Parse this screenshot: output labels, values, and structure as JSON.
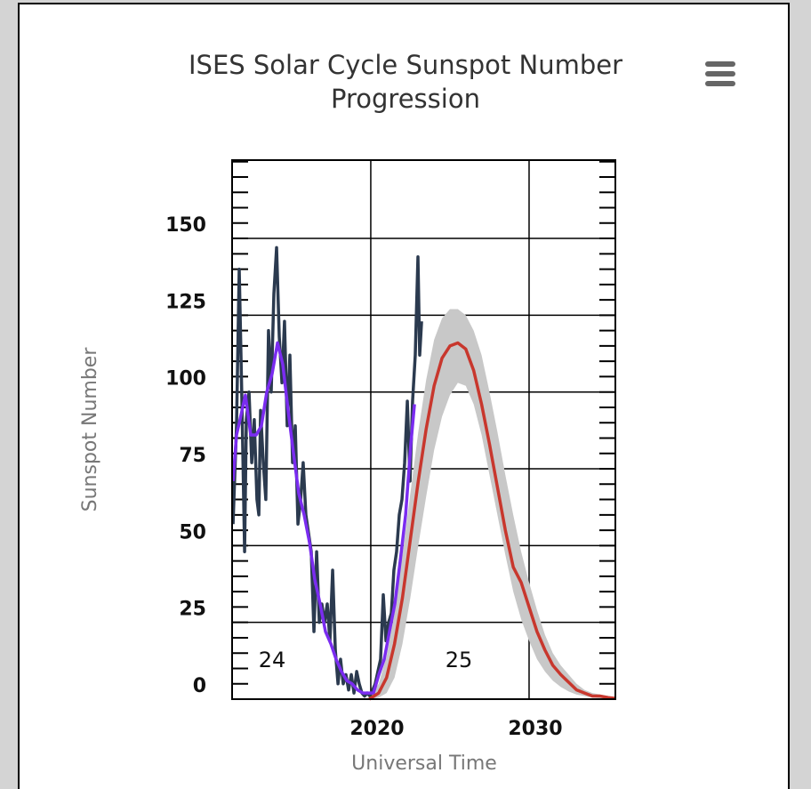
{
  "chart_data": {
    "type": "line",
    "title": "ISES Solar Cycle Sunspot Number Progression",
    "x_label": "Universal Time",
    "y_label": "Sunspot Number",
    "annotations": [
      "24",
      "25"
    ],
    "xlim": [
      2011.24,
      2035.45
    ],
    "ylim": [
      0,
      175.5
    ],
    "xticks": [
      2020,
      2030
    ],
    "yticks": [
      0,
      25,
      50,
      75,
      100,
      125,
      150
    ],
    "yminorticks": [
      0,
      5,
      10,
      15,
      20,
      25,
      30,
      35,
      40,
      45,
      50,
      55,
      60,
      65,
      70,
      75,
      80,
      85,
      90,
      95,
      100,
      105,
      110,
      115,
      120,
      125,
      130,
      135,
      140,
      145,
      150,
      155,
      160,
      165,
      170,
      175
    ],
    "grid": true,
    "band": {
      "type": "arearange",
      "color": "#c8c8c8",
      "x": [
        2019.9,
        2020.5,
        2021,
        2021.5,
        2022,
        2022.5,
        2023,
        2023.5,
        2024,
        2024.5,
        2025,
        2025.5,
        2026,
        2026.5,
        2027,
        2027.5,
        2028,
        2028.5,
        2029,
        2029.5,
        2030,
        2030.5,
        2031,
        2031.5,
        2032,
        2032.5,
        2033,
        2033.5,
        2034,
        2034.5,
        2035,
        2035.4
      ],
      "high": [
        1,
        5,
        14,
        28,
        47,
        67,
        87,
        104,
        117,
        124,
        127,
        127,
        125,
        120,
        112,
        100,
        87,
        73,
        60,
        48,
        38,
        29,
        21,
        15,
        11,
        8,
        5,
        3,
        2,
        1.5,
        1,
        0.6
      ],
      "low": [
        0,
        0.5,
        2,
        7,
        18,
        33,
        50,
        66,
        81,
        92,
        99,
        103,
        102,
        96,
        86,
        73,
        60,
        47,
        35,
        26,
        19,
        13,
        9,
        6,
        4,
        2.5,
        1.5,
        1,
        0.5,
        0.3,
        0.2,
        0.1
      ]
    },
    "series": [
      {
        "color": "#2b3a4f",
        "x": [
          2011.3,
          2011.52,
          2011.69,
          2011.86,
          2012.03,
          2012.14,
          2012.31,
          2012.48,
          2012.64,
          2012.81,
          2012.93,
          2013.04,
          2013.21,
          2013.37,
          2013.54,
          2013.71,
          2013.88,
          2014.05,
          2014.22,
          2014.39,
          2014.55,
          2014.72,
          2014.89,
          2015.06,
          2015.23,
          2015.4,
          2015.57,
          2015.73,
          2015.9,
          2016.07,
          2016.24,
          2016.41,
          2016.58,
          2016.75,
          2016.91,
          2017.08,
          2017.25,
          2017.42,
          2017.59,
          2017.76,
          2017.93,
          2018.09,
          2018.26,
          2018.43,
          2018.6,
          2018.77,
          2018.94,
          2019.11,
          2019.27,
          2019.44,
          2019.61,
          2019.78,
          2019.95,
          2020.12,
          2020.28,
          2020.45,
          2020.62,
          2020.79,
          2020.96,
          2021.13,
          2021.3,
          2021.46,
          2021.63,
          2021.8,
          2021.97,
          2022.14,
          2022.31,
          2022.48,
          2022.64,
          2022.81,
          2022.98,
          2023.09,
          2023.21
        ],
        "values": [
          57,
          89,
          140,
          97,
          48,
          91,
          100,
          77,
          91,
          65,
          60,
          94,
          77,
          65,
          120,
          100,
          132,
          147,
          118,
          103,
          123,
          89,
          112,
          77,
          89,
          57,
          65,
          77,
          60,
          54,
          48,
          22,
          48,
          25,
          31,
          25,
          31,
          19,
          42,
          16,
          5,
          13,
          5,
          8,
          3,
          8,
          2,
          9,
          5,
          2,
          1,
          2,
          1,
          3,
          5,
          9,
          13,
          34,
          19,
          25,
          28,
          42,
          48,
          60,
          65,
          77,
          97,
          71,
          97,
          112,
          144,
          112,
          123
        ]
      },
      {
        "color": "#7a2cf0",
        "x": [
          2011.3,
          2011.52,
          2011.74,
          2012.08,
          2012.42,
          2012.76,
          2013.09,
          2013.43,
          2013.77,
          2014.11,
          2014.44,
          2014.78,
          2015.12,
          2015.45,
          2015.79,
          2016.13,
          2016.46,
          2016.8,
          2017.14,
          2017.48,
          2017.81,
          2018.15,
          2018.49,
          2018.82,
          2019.16,
          2019.5,
          2019.84,
          2020.17,
          2020.51,
          2020.85,
          2021.18,
          2021.52,
          2021.86,
          2022.2,
          2022.53,
          2022.76
        ],
        "values": [
          71,
          86,
          91,
          99,
          86,
          86,
          89,
          100,
          106,
          116,
          109,
          94,
          80,
          67,
          60,
          51,
          39,
          31,
          22,
          18,
          13,
          9,
          6,
          5,
          3,
          2,
          2,
          2,
          8,
          13,
          22,
          31,
          45,
          60,
          83,
          96
        ]
      },
      {
        "color": "#c8372d",
        "x": [
          2019.9,
          2020.5,
          2021,
          2021.5,
          2022,
          2022.5,
          2023,
          2023.5,
          2024,
          2024.5,
          2025,
          2025.5,
          2026,
          2026.5,
          2027,
          2027.5,
          2028,
          2028.5,
          2029,
          2029.5,
          2030,
          2030.5,
          2031,
          2031.5,
          2032,
          2032.5,
          2033,
          2033.5,
          2034,
          2034.5,
          2035,
          2035.4
        ],
        "values": [
          0,
          2,
          7,
          18,
          33,
          52,
          71,
          88,
          102,
          111,
          115,
          116,
          114,
          107,
          96,
          83,
          69,
          55,
          43,
          38,
          30,
          22,
          16,
          11,
          8,
          5.5,
          3,
          2,
          1,
          1,
          0.5,
          0.3
        ]
      }
    ]
  }
}
